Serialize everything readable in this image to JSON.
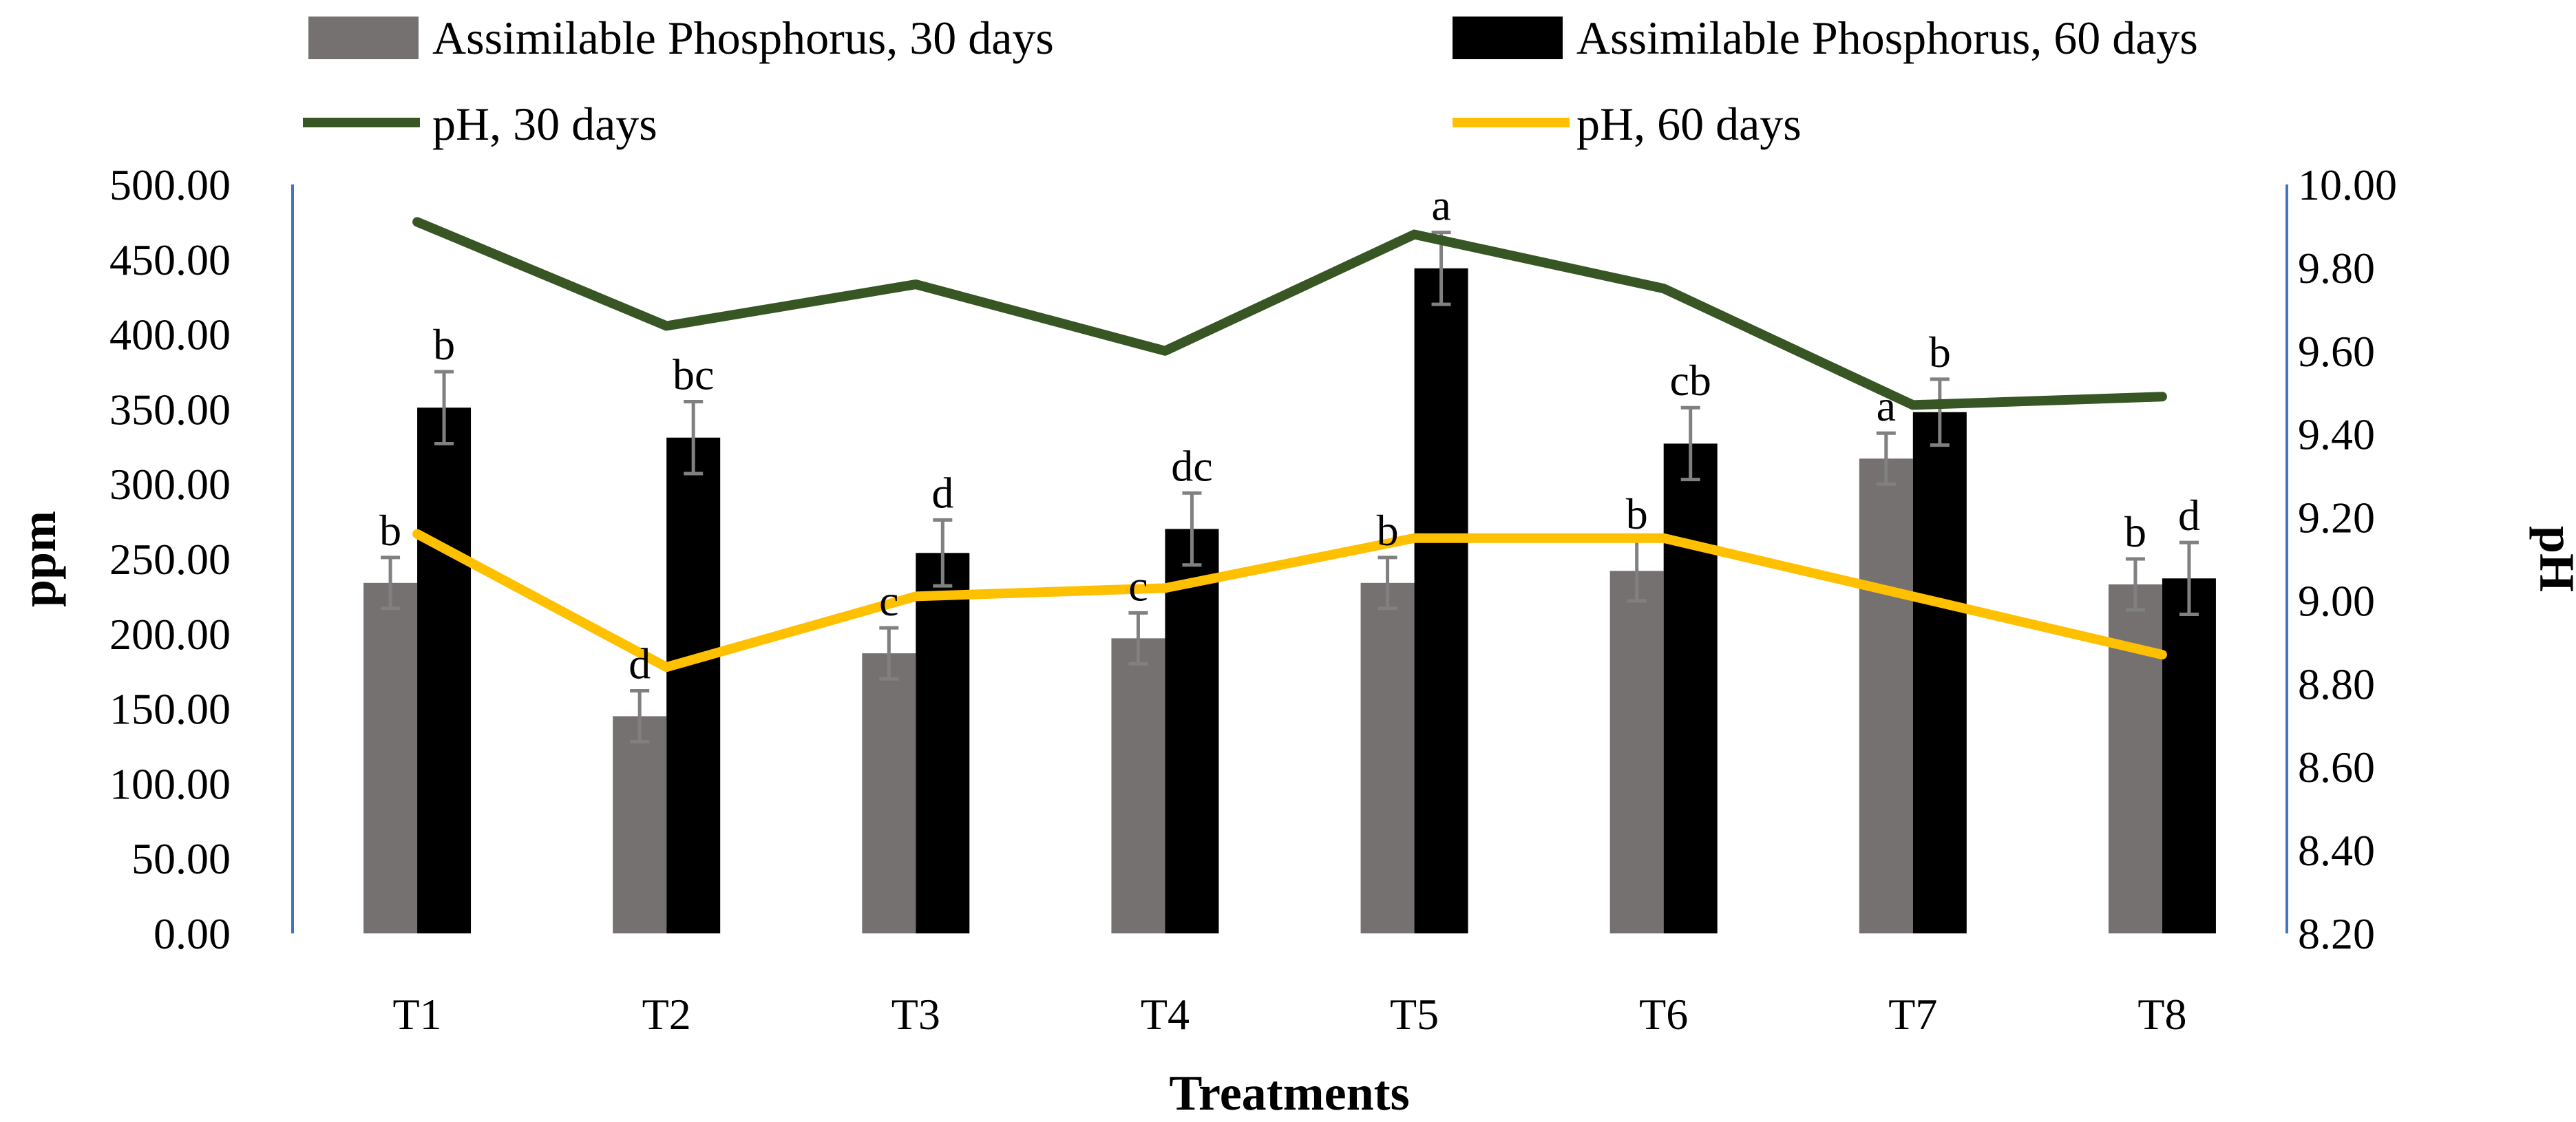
{
  "chart_data": {
    "type": "bar+line",
    "categories": [
      "T1",
      "T2",
      "T3",
      "T4",
      "T5",
      "T6",
      "T7",
      "T8"
    ],
    "xlabel": "Treatments",
    "ylabel_left": "ppm",
    "ylabel_right": "pH",
    "ylim_left": [
      0,
      500
    ],
    "ylim_right": [
      8.2,
      10.0
    ],
    "left_ticks": [
      "0.00",
      "50.00",
      "100.00",
      "150.00",
      "200.00",
      "250.00",
      "300.00",
      "350.00",
      "400.00",
      "450.00",
      "500.00"
    ],
    "right_ticks": [
      "8.20",
      "8.40",
      "8.60",
      "8.80",
      "9.00",
      "9.20",
      "9.40",
      "9.60",
      "9.80",
      "10.00"
    ],
    "bar_series": [
      {
        "name": "Assimilable Phosphorus, 30 days",
        "color": "#767171",
        "values": [
          234,
          145,
          187,
          197,
          234,
          242,
          317,
          233
        ],
        "errors": [
          17,
          17,
          17,
          17,
          17,
          20,
          17,
          17
        ],
        "labels": [
          "b",
          "d",
          "c",
          "c",
          "b",
          "b",
          "a",
          "b"
        ]
      },
      {
        "name": "Assimilable Phosphorus, 60 days",
        "color": "#000000",
        "values": [
          351,
          331,
          254,
          270,
          444,
          327,
          348,
          237
        ],
        "errors": [
          24,
          24,
          22,
          24,
          24,
          24,
          22,
          24
        ],
        "labels": [
          "b",
          "bc",
          "d",
          "dc",
          "a",
          "cb",
          "b",
          "d"
        ]
      }
    ],
    "line_series": [
      {
        "name": "pH, 30 days",
        "color": "#375623",
        "values": [
          9.91,
          9.66,
          9.76,
          9.6,
          9.88,
          9.75,
          9.47,
          9.49
        ]
      },
      {
        "name": "pH, 60 days",
        "color": "#FFC000",
        "values": [
          9.16,
          8.84,
          9.01,
          9.03,
          9.15,
          9.15,
          9.01,
          8.87
        ]
      }
    ]
  }
}
